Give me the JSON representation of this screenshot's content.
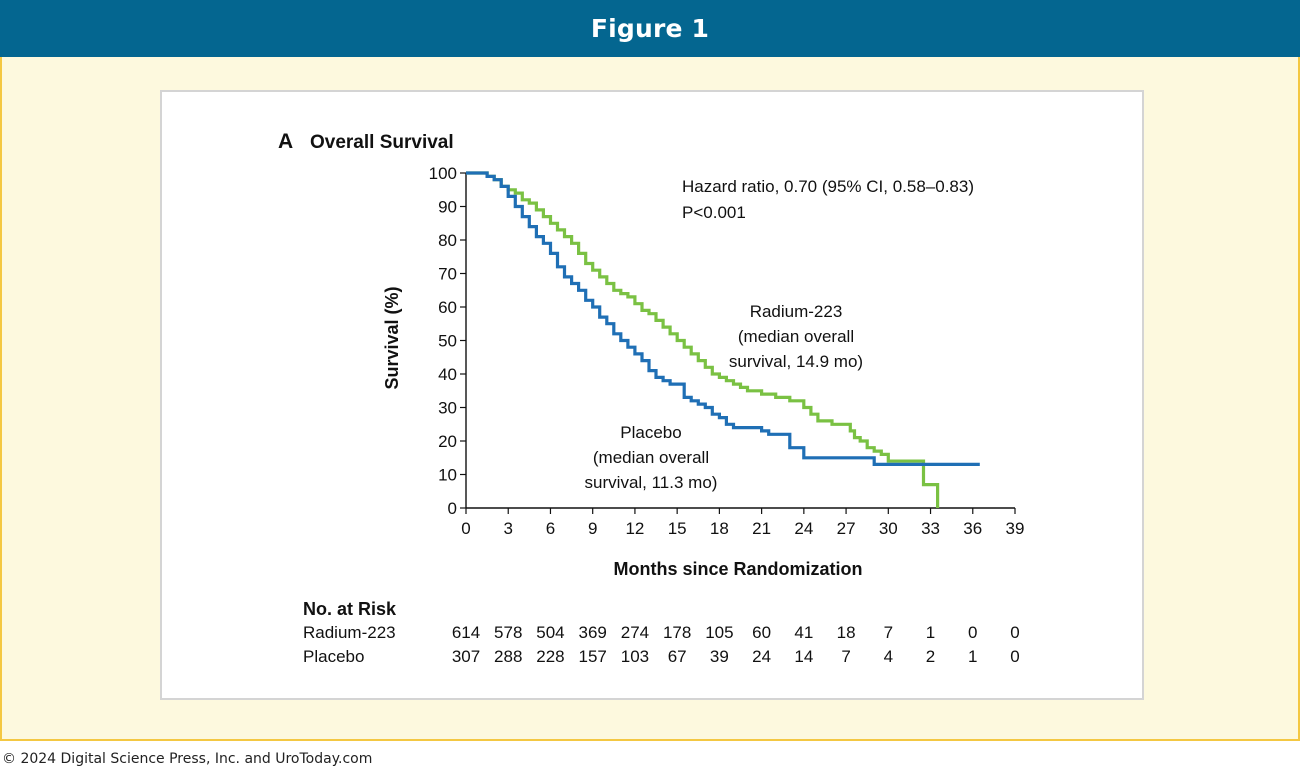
{
  "header": {
    "title": "Figure 1"
  },
  "footer": {
    "copyright": "© 2024 Digital Science Press, Inc. and UroToday.com"
  },
  "colors": {
    "header_bg": "#046690",
    "frame_bg": "#fdf9de",
    "frame_border": "#f4c842",
    "radium": "#7ac143",
    "placebo": "#1f6fb5"
  },
  "chart_data": {
    "type": "line",
    "panel_letter": "A",
    "title": "Overall Survival",
    "xlabel": "Months since Randomization",
    "ylabel": "Survival (%)",
    "xlim": [
      0,
      39
    ],
    "ylim": [
      0,
      100
    ],
    "x_ticks": [
      0,
      3,
      6,
      9,
      12,
      15,
      18,
      21,
      24,
      27,
      30,
      33,
      36,
      39
    ],
    "y_ticks": [
      0,
      10,
      20,
      30,
      40,
      50,
      60,
      70,
      80,
      90,
      100
    ],
    "grid": false,
    "annotations": {
      "hazard_ratio": "Hazard ratio, 0.70 (95% CI, 0.58–0.83)",
      "p_value": "P<0.001",
      "radium_label": [
        "Radium-223",
        "(median overall",
        "survival, 14.9 mo)"
      ],
      "placebo_label": [
        "Placebo",
        "(median overall",
        "survival, 11.3 mo)"
      ]
    },
    "series": [
      {
        "name": "Radium-223",
        "color": "#7ac143",
        "points": [
          [
            0,
            100
          ],
          [
            1,
            100
          ],
          [
            1.5,
            99
          ],
          [
            2,
            98
          ],
          [
            2.5,
            96
          ],
          [
            3,
            95
          ],
          [
            3.5,
            94
          ],
          [
            4,
            92
          ],
          [
            4.5,
            91
          ],
          [
            5,
            89
          ],
          [
            5.5,
            87
          ],
          [
            6,
            85
          ],
          [
            6.5,
            83
          ],
          [
            7,
            81
          ],
          [
            7.5,
            79
          ],
          [
            8,
            76
          ],
          [
            8.5,
            73
          ],
          [
            9,
            71
          ],
          [
            9.5,
            69
          ],
          [
            10,
            67
          ],
          [
            10.5,
            65
          ],
          [
            11,
            64
          ],
          [
            11.5,
            63
          ],
          [
            12,
            61
          ],
          [
            12.5,
            59
          ],
          [
            13,
            58
          ],
          [
            13.5,
            56
          ],
          [
            14,
            54
          ],
          [
            14.5,
            52
          ],
          [
            15,
            50
          ],
          [
            15.5,
            48
          ],
          [
            16,
            46
          ],
          [
            16.5,
            44
          ],
          [
            17,
            42
          ],
          [
            17.5,
            40
          ],
          [
            18,
            39
          ],
          [
            18.5,
            38
          ],
          [
            19,
            37
          ],
          [
            19.5,
            36
          ],
          [
            20,
            35
          ],
          [
            21,
            34
          ],
          [
            22,
            33
          ],
          [
            23,
            32
          ],
          [
            24,
            30
          ],
          [
            24.5,
            28
          ],
          [
            25,
            26
          ],
          [
            26,
            25
          ],
          [
            27,
            25
          ],
          [
            27.3,
            23
          ],
          [
            27.6,
            21
          ],
          [
            28,
            20
          ],
          [
            28.5,
            18
          ],
          [
            29,
            17
          ],
          [
            29.5,
            16
          ],
          [
            30,
            14
          ],
          [
            31,
            14
          ],
          [
            32,
            14
          ],
          [
            32.5,
            14
          ],
          [
            32.5,
            7
          ],
          [
            33.5,
            7
          ],
          [
            33.5,
            0
          ]
        ]
      },
      {
        "name": "Placebo",
        "color": "#1f6fb5",
        "points": [
          [
            0,
            100
          ],
          [
            1,
            100
          ],
          [
            1.5,
            99
          ],
          [
            2,
            98
          ],
          [
            2.5,
            96
          ],
          [
            3,
            93
          ],
          [
            3.5,
            90
          ],
          [
            4,
            87
          ],
          [
            4.5,
            84
          ],
          [
            5,
            81
          ],
          [
            5.5,
            79
          ],
          [
            6,
            76
          ],
          [
            6.5,
            72
          ],
          [
            7,
            69
          ],
          [
            7.5,
            67
          ],
          [
            8,
            65
          ],
          [
            8.5,
            62
          ],
          [
            9,
            60
          ],
          [
            9.5,
            57
          ],
          [
            10,
            55
          ],
          [
            10.5,
            52
          ],
          [
            11,
            50
          ],
          [
            11.5,
            48
          ],
          [
            12,
            46
          ],
          [
            12.5,
            44
          ],
          [
            13,
            41
          ],
          [
            13.5,
            39
          ],
          [
            14,
            38
          ],
          [
            14.5,
            37
          ],
          [
            15,
            37
          ],
          [
            15.5,
            33
          ],
          [
            16,
            32
          ],
          [
            16.5,
            31
          ],
          [
            17,
            30
          ],
          [
            17.5,
            28
          ],
          [
            18,
            27
          ],
          [
            18.5,
            25
          ],
          [
            19,
            24
          ],
          [
            20,
            24
          ],
          [
            21,
            23
          ],
          [
            21.5,
            22
          ],
          [
            23,
            22
          ],
          [
            23,
            18
          ],
          [
            24,
            18
          ],
          [
            24,
            15
          ],
          [
            27,
            15
          ],
          [
            28,
            15
          ],
          [
            29,
            13
          ],
          [
            30,
            13
          ],
          [
            31,
            13
          ],
          [
            32,
            13
          ],
          [
            33,
            13
          ],
          [
            34,
            13
          ],
          [
            36.5,
            13
          ]
        ]
      }
    ],
    "at_risk": {
      "label": "No. at Risk",
      "rows": [
        {
          "name": "Radium-223",
          "values": [
            "614",
            "578",
            "504",
            "369",
            "274",
            "178",
            "105",
            "60",
            "41",
            "18",
            "7",
            "1",
            "0",
            "0"
          ]
        },
        {
          "name": "Placebo",
          "values": [
            "307",
            "288",
            "228",
            "157",
            "103",
            "67",
            "39",
            "24",
            "14",
            "7",
            "4",
            "2",
            "1",
            "0"
          ]
        }
      ]
    }
  }
}
